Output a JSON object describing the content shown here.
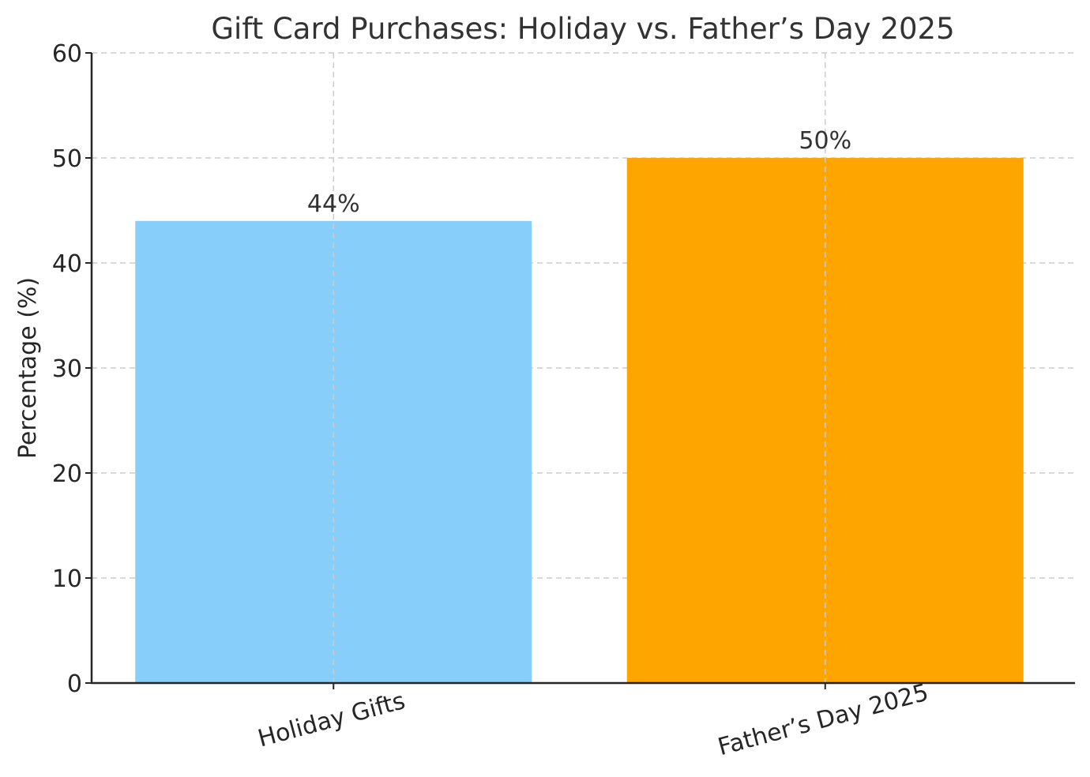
{
  "chart_data": {
    "type": "bar",
    "title": "Gift Card Purchases: Holiday vs. Father’s Day 2025",
    "xlabel": "",
    "ylabel": "Percentage (%)",
    "categories": [
      "Holiday Gifts",
      "Father’s Day 2025"
    ],
    "values": [
      44,
      50
    ],
    "value_labels": [
      "44%",
      "50%"
    ],
    "colors": [
      "#87CEFA",
      "#FFA500"
    ],
    "ylim": [
      0,
      60
    ],
    "yticks": [
      0,
      10,
      20,
      30,
      40,
      50,
      60
    ],
    "grid": true,
    "grid_style": "dashed",
    "legend": null,
    "xtick_rotation": 15
  },
  "style": {
    "text_color": "#333333",
    "axis_color": "#262626",
    "grid_color": "#cccccc",
    "background": "#ffffff"
  }
}
